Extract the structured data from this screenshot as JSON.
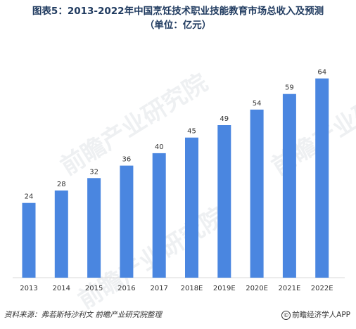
{
  "title_line1": "图表5：2013-2022年中国烹饪技术职业技能教育市场总收入及预测",
  "title_line2": "（单位：亿元）",
  "chart_data": {
    "type": "bar",
    "categories": [
      "2013",
      "2014",
      "2015",
      "2016",
      "2017",
      "2018E",
      "2019E",
      "2020E",
      "2021E",
      "2022E"
    ],
    "values": [
      24,
      28,
      32,
      36,
      40,
      45,
      49,
      54,
      59,
      64
    ],
    "ylim": [
      0,
      70
    ],
    "grid": false,
    "bar_color": "#4a86e0"
  },
  "source": "资料来源：弗若斯特沙利文  前瞻产业研究院整理",
  "brand": "前瞻经济学人APP",
  "watermark": "前瞻产业研究院"
}
